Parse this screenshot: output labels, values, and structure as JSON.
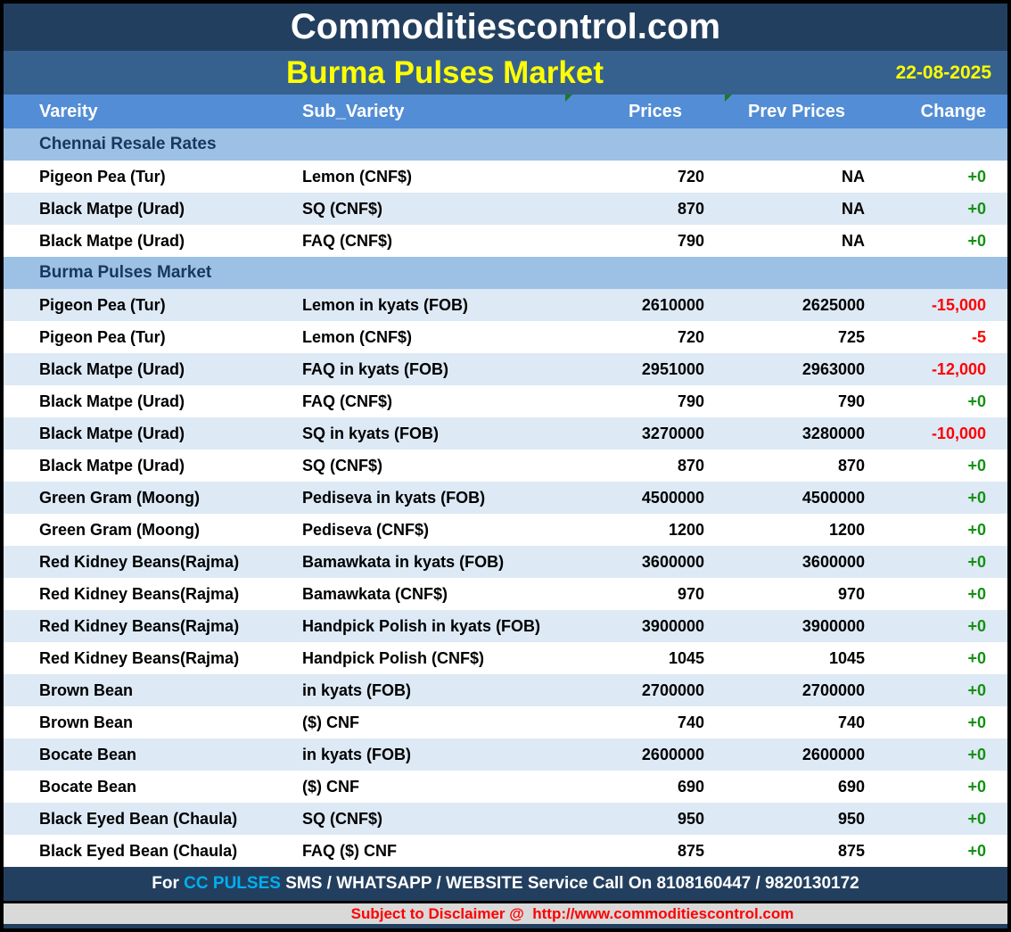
{
  "header": {
    "site_title": "Commoditiescontrol.com",
    "report_title": "Burma Pulses Market",
    "date": "22-08-2025"
  },
  "table": {
    "columns": [
      "Vareity",
      "Sub_Variety",
      "Prices",
      "Prev Prices",
      "Change"
    ],
    "sections": [
      {
        "title": "Chennai Resale Rates",
        "rows": [
          {
            "variety": "Pigeon Pea (Tur)",
            "sub_variety": "Lemon (CNF$)",
            "price": "720",
            "prev_price": "NA",
            "change": "+0"
          },
          {
            "variety": "Black Matpe (Urad)",
            "sub_variety": "SQ (CNF$)",
            "price": "870",
            "prev_price": "NA",
            "change": "+0"
          },
          {
            "variety": "Black Matpe (Urad)",
            "sub_variety": "FAQ (CNF$)",
            "price": "790",
            "prev_price": "NA",
            "change": "+0"
          }
        ]
      },
      {
        "title": "Burma Pulses Market",
        "rows": [
          {
            "variety": "Pigeon Pea (Tur)",
            "sub_variety": "Lemon in kyats (FOB)",
            "price": "2610000",
            "prev_price": "2625000",
            "change": "-15,000"
          },
          {
            "variety": "Pigeon Pea (Tur)",
            "sub_variety": "Lemon (CNF$)",
            "price": "720",
            "prev_price": "725",
            "change": "-5"
          },
          {
            "variety": "Black Matpe (Urad)",
            "sub_variety": "FAQ in kyats (FOB)",
            "price": "2951000",
            "prev_price": "2963000",
            "change": "-12,000"
          },
          {
            "variety": "Black Matpe (Urad)",
            "sub_variety": "FAQ (CNF$)",
            "price": "790",
            "prev_price": "790",
            "change": "+0"
          },
          {
            "variety": "Black Matpe (Urad)",
            "sub_variety": "SQ in kyats (FOB)",
            "price": "3270000",
            "prev_price": "3280000",
            "change": "-10,000"
          },
          {
            "variety": "Black Matpe (Urad)",
            "sub_variety": "SQ (CNF$)",
            "price": "870",
            "prev_price": "870",
            "change": "+0"
          },
          {
            "variety": "Green Gram (Moong)",
            "sub_variety": "Pediseva in kyats (FOB)",
            "price": "4500000",
            "prev_price": "4500000",
            "change": "+0"
          },
          {
            "variety": "Green Gram (Moong)",
            "sub_variety": "Pediseva (CNF$)",
            "price": "1200",
            "prev_price": "1200",
            "change": "+0"
          },
          {
            "variety": "Red Kidney Beans(Rajma)",
            "sub_variety": "Bamawkata in kyats (FOB)",
            "price": "3600000",
            "prev_price": "3600000",
            "change": "+0"
          },
          {
            "variety": "Red Kidney Beans(Rajma)",
            "sub_variety": "Bamawkata (CNF$)",
            "price": "970",
            "prev_price": "970",
            "change": "+0"
          },
          {
            "variety": "Red Kidney Beans(Rajma)",
            "sub_variety": "Handpick Polish in kyats (FOB)",
            "price": "3900000",
            "prev_price": "3900000",
            "change": "+0"
          },
          {
            "variety": "Red Kidney Beans(Rajma)",
            "sub_variety": "Handpick Polish (CNF$)",
            "price": "1045",
            "prev_price": "1045",
            "change": "+0"
          },
          {
            "variety": "Brown Bean",
            "sub_variety": "in kyats (FOB)",
            "price": "2700000",
            "prev_price": "2700000",
            "change": "+0"
          },
          {
            "variety": "Brown Bean",
            "sub_variety": "($) CNF",
            "price": "740",
            "prev_price": "740",
            "change": "+0"
          },
          {
            "variety": "Bocate Bean",
            "sub_variety": "in kyats (FOB)",
            "price": "2600000",
            "prev_price": "2600000",
            "change": "+0"
          },
          {
            "variety": "Bocate Bean",
            "sub_variety": "($) CNF",
            "price": "690",
            "prev_price": "690",
            "change": "+0"
          },
          {
            "variety": "Black Eyed Bean (Chaula)",
            "sub_variety": "SQ (CNF$)",
            "price": "950",
            "prev_price": "950",
            "change": "+0"
          },
          {
            "variety": "Black Eyed Bean (Chaula)",
            "sub_variety": "FAQ ($) CNF",
            "price": "875",
            "prev_price": "875",
            "change": "+0"
          }
        ]
      }
    ]
  },
  "footer": {
    "service_prefix": "For ",
    "service_brand": "CC PULSES",
    "service_rest": " SMS / WHATSAPP / WEBSITE Service Call On 8108160447 / 9820130172",
    "disclaimer_prefix": "Subject to Disclaimer @  ",
    "disclaimer_url": "http://www.commoditiescontrol.com"
  },
  "colors": {
    "navy": "#233F5F",
    "subtitle_blue": "#36618F",
    "header_blue": "#538DD5",
    "section_band_blue": "#9CC1E5",
    "row_shade_blue": "#DDE9F5",
    "title_yellow": "#FFFF00",
    "brand_cyan": "#00B0F0",
    "negative": "#FF0000",
    "positive": "#129112",
    "disclaimer_bg": "#D9D9D9",
    "flag_green": "#1E7A1E"
  }
}
